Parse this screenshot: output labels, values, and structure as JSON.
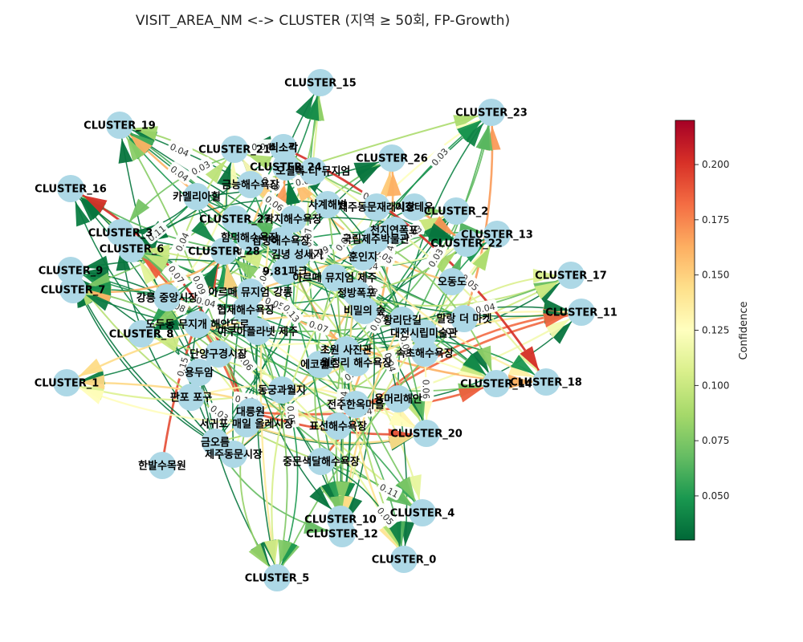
{
  "title": "VISIT_AREA_NM <-> CLUSTER  (지역 ≥ 50회, FP-Growth)",
  "colorbar": {
    "label": "Confidence",
    "ticks": [
      "0.200",
      "0.175",
      "0.150",
      "0.125",
      "0.100",
      "0.075",
      "0.050"
    ],
    "range": [
      0.03,
      0.22
    ],
    "colormap": "RdYlGn_r",
    "colors": [
      "#006837",
      "#1a9850",
      "#66bd63",
      "#a6d96a",
      "#d9ef8b",
      "#ffffbf",
      "#fee08b",
      "#fdae61",
      "#f46d43",
      "#d73027",
      "#a50026"
    ]
  },
  "node_color": "#add8e6",
  "clusters": [
    {
      "id": "c15",
      "label": "CLUSTER_15"
    },
    {
      "id": "c23",
      "label": "CLUSTER_23"
    },
    {
      "id": "c19",
      "label": "CLUSTER_19"
    },
    {
      "id": "c21",
      "label": "CLUSTER_21"
    },
    {
      "id": "c26",
      "label": "CLUSTER_26"
    },
    {
      "id": "c24",
      "label": "CLUSTER_24"
    },
    {
      "id": "c16",
      "label": "CLUSTER_16"
    },
    {
      "id": "c2",
      "label": "CLUSTER_2"
    },
    {
      "id": "c27",
      "label": "CLUSTER_27"
    },
    {
      "id": "c13",
      "label": "CLUSTER_13"
    },
    {
      "id": "c3",
      "label": "CLUSTER_3"
    },
    {
      "id": "c22",
      "label": "CLUSTER_22"
    },
    {
      "id": "c6",
      "label": "CLUSTER_6"
    },
    {
      "id": "c28",
      "label": "CLUSTER_28"
    },
    {
      "id": "c9",
      "label": "CLUSTER_9"
    },
    {
      "id": "c17",
      "label": "CLUSTER_17"
    },
    {
      "id": "c7",
      "label": "CLUSTER_7"
    },
    {
      "id": "c11",
      "label": "CLUSTER_11"
    },
    {
      "id": "c8",
      "label": "CLUSTER_8"
    },
    {
      "id": "c14",
      "label": "CLUSTER_14"
    },
    {
      "id": "c18",
      "label": "CLUSTER_18"
    },
    {
      "id": "c1",
      "label": "CLUSTER_1"
    },
    {
      "id": "c20",
      "label": "CLUSTER_20"
    },
    {
      "id": "c4",
      "label": "CLUSTER_4"
    },
    {
      "id": "c10",
      "label": "CLUSTER_10"
    },
    {
      "id": "c12",
      "label": "CLUSTER_12"
    },
    {
      "id": "c0",
      "label": "CLUSTER_0"
    },
    {
      "id": "c5",
      "label": "CLUSTER_5"
    }
  ],
  "places": [
    {
      "id": "p1",
      "label": "비소각"
    },
    {
      "id": "p2",
      "label": "오설록 티 뮤지엄"
    },
    {
      "id": "p3",
      "label": "금능해수욕장"
    },
    {
      "id": "p4",
      "label": "카멜리아힐"
    },
    {
      "id": "p5",
      "label": "사계해변"
    },
    {
      "id": "p6",
      "label": "제주동문재래시장"
    },
    {
      "id": "p7",
      "label": "이호테우"
    },
    {
      "id": "p8",
      "label": "곽지해수욕장"
    },
    {
      "id": "p9",
      "label": "천지연폭포"
    },
    {
      "id": "p10",
      "label": "국립제주박물관"
    },
    {
      "id": "p11",
      "label": "함덕해수욕장"
    },
    {
      "id": "p12",
      "label": "삼양해수욕장"
    },
    {
      "id": "p13",
      "label": "김녕 성세기"
    },
    {
      "id": "p14",
      "label": "훈인지"
    },
    {
      "id": "p15",
      "label": "9.81파크"
    },
    {
      "id": "p16",
      "label": "아르떼 뮤지엄 제주"
    },
    {
      "id": "p17",
      "label": "오동도"
    },
    {
      "id": "p18",
      "label": "강릉 중앙시장"
    },
    {
      "id": "p19",
      "label": "아르떼 뮤지엄 강릉"
    },
    {
      "id": "p20",
      "label": "정방폭포"
    },
    {
      "id": "p21",
      "label": "협재해수욕장"
    },
    {
      "id": "p22",
      "label": "비밀의 숲"
    },
    {
      "id": "p23",
      "label": "황리단길"
    },
    {
      "id": "p24",
      "label": "말랑 더 마켓"
    },
    {
      "id": "p25",
      "label": "도두동 무지개 해안도로"
    },
    {
      "id": "p26",
      "label": "아쿠아플라넷 제주"
    },
    {
      "id": "p27",
      "label": "대전시립미술관"
    },
    {
      "id": "p28",
      "label": "단양구경시장"
    },
    {
      "id": "p29",
      "label": "초원 사진관"
    },
    {
      "id": "p30",
      "label": "속초해수욕장"
    },
    {
      "id": "p31",
      "label": "용두암"
    },
    {
      "id": "p32",
      "label": "월정리 해수욕장"
    },
    {
      "id": "p33",
      "label": "에코랜드"
    },
    {
      "id": "p34",
      "label": "동궁과월지"
    },
    {
      "id": "p35",
      "label": "대릉원"
    },
    {
      "id": "p36",
      "label": "판포 포구"
    },
    {
      "id": "p37",
      "label": "전주한옥마을"
    },
    {
      "id": "p38",
      "label": "용머리해안"
    },
    {
      "id": "p39",
      "label": "서귀포 매일 올레시장"
    },
    {
      "id": "p40",
      "label": "표선해수욕장"
    },
    {
      "id": "p41",
      "label": "금오름"
    },
    {
      "id": "p42",
      "label": "제주동문시장"
    },
    {
      "id": "p43",
      "label": "중문색달해수욕장"
    },
    {
      "id": "p44",
      "label": "한발수목원"
    },
    {
      "id": "p45",
      "label": "쇠소깍"
    }
  ],
  "edge_labels": [
    {
      "key": "e1",
      "text": "0.04"
    },
    {
      "key": "e2",
      "text": "0.03"
    },
    {
      "key": "e3",
      "text": "0.04"
    },
    {
      "key": "e4",
      "text": "0.04"
    },
    {
      "key": "e5",
      "text": "0.04"
    },
    {
      "key": "e6",
      "text": "0.04"
    },
    {
      "key": "e7",
      "text": "0.04"
    },
    {
      "key": "e8",
      "text": "0.04"
    },
    {
      "key": "e9",
      "text": "0.05"
    },
    {
      "key": "e10",
      "text": "0.03"
    },
    {
      "key": "e11",
      "text": "0.04"
    },
    {
      "key": "e12",
      "text": "0.04"
    },
    {
      "key": "e13",
      "text": "0.09"
    },
    {
      "key": "e14",
      "text": "0.03"
    },
    {
      "key": "e15",
      "text": "0.04"
    },
    {
      "key": "e16",
      "text": "0.11"
    },
    {
      "key": "e17",
      "text": "0.07"
    },
    {
      "key": "e18",
      "text": "0.15"
    },
    {
      "key": "e19",
      "text": "0.13"
    },
    {
      "key": "e20",
      "text": "0.08"
    },
    {
      "key": "e21",
      "text": "0.03"
    },
    {
      "key": "e22",
      "text": "0.06"
    },
    {
      "key": "e23",
      "text": "0.04"
    },
    {
      "key": "e24",
      "text": "0.04"
    },
    {
      "key": "e25",
      "text": "0.09"
    },
    {
      "key": "e26",
      "text": "0.04"
    },
    {
      "key": "e27",
      "text": "0.08"
    },
    {
      "key": "e28",
      "text": "0.05"
    },
    {
      "key": "e29",
      "text": "0.10"
    },
    {
      "key": "e30",
      "text": "0.06"
    },
    {
      "key": "e31",
      "text": "0.08"
    },
    {
      "key": "e32",
      "text": "0.11"
    },
    {
      "key": "e33",
      "text": "0.06"
    },
    {
      "key": "e34",
      "text": "0.04"
    },
    {
      "key": "e35",
      "text": "0.04"
    },
    {
      "key": "e36",
      "text": "0.05"
    },
    {
      "key": "e37",
      "text": "0.05"
    },
    {
      "key": "e38",
      "text": "0.07"
    },
    {
      "key": "e39",
      "text": "0.03"
    },
    {
      "key": "e40",
      "text": "0.03"
    },
    {
      "key": "e41",
      "text": "0.06"
    },
    {
      "key": "e42",
      "text": "0.09"
    },
    {
      "key": "e43",
      "text": "0.10"
    },
    {
      "key": "e44",
      "text": "0.04"
    },
    {
      "key": "e45",
      "text": "0.05"
    },
    {
      "key": "e46",
      "text": "0.04"
    },
    {
      "key": "e47",
      "text": "0.07"
    },
    {
      "key": "e48",
      "text": "0.03"
    }
  ]
}
